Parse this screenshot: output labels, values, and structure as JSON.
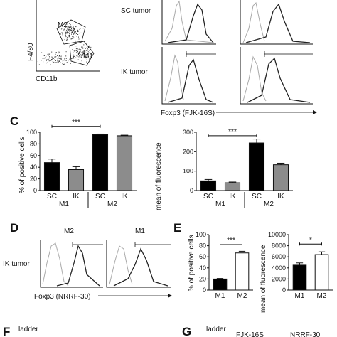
{
  "panel_top": {
    "dot_plot": {
      "ylabel": "F4/80",
      "xlabel": "CD11b",
      "gate1": "M2",
      "gate2": "M1"
    },
    "row1_label": "SC tumor",
    "row2_label": "IK tumor",
    "hist_xlabel": "Foxp3 (FJK-16S)"
  },
  "panel_c": {
    "letter": "C",
    "left_ylabel": "% of positive cells",
    "right_ylabel": "mean of fluorescence",
    "sig": "***"
  },
  "panel_d": {
    "letter": "D",
    "row_label": "IK tumor",
    "col1": "M2",
    "col2": "M1",
    "xlabel": "Foxp3 (NRRF-30)"
  },
  "panel_e": {
    "letter": "E",
    "left_ylabel": "% of positive cells",
    "right_ylabel": "mean of fluorescence",
    "sig_left": "***",
    "sig_right": "*"
  },
  "panel_f": {
    "letter": "F",
    "ladder": "ladder"
  },
  "panel_g": {
    "letter": "G",
    "ladder": "ladder",
    "col1": "FJK-16S",
    "col2": "NRRF-30"
  },
  "chart_data": [
    {
      "type": "bar",
      "panel": "C-left",
      "categories": [
        "SC",
        "IK",
        "SC",
        "IK"
      ],
      "groups": [
        "M1",
        "M2"
      ],
      "values": [
        48,
        36,
        96,
        94
      ],
      "errors": [
        6,
        5,
        1,
        1
      ],
      "colors": [
        "#000000",
        "#8c8c8c",
        "#000000",
        "#8c8c8c"
      ],
      "ylabel": "% of positive cells",
      "ylim": [
        0,
        100
      ],
      "yticks": [
        0,
        20,
        40,
        60,
        80,
        100
      ],
      "sig": "***"
    },
    {
      "type": "bar",
      "panel": "C-right",
      "categories": [
        "SC",
        "IK",
        "SC",
        "IK"
      ],
      "groups": [
        "M1",
        "M2"
      ],
      "values": [
        50,
        40,
        245,
        133
      ],
      "errors": [
        7,
        4,
        20,
        8
      ],
      "colors": [
        "#000000",
        "#8c8c8c",
        "#000000",
        "#8c8c8c"
      ],
      "ylabel": "mean of fluorescence",
      "ylim": [
        0,
        300
      ],
      "yticks": [
        0,
        100,
        200,
        300
      ],
      "sig": "***"
    },
    {
      "type": "bar",
      "panel": "E-left",
      "categories": [
        "M1",
        "M2"
      ],
      "values": [
        20,
        67
      ],
      "errors": [
        1,
        3
      ],
      "colors": [
        "#000000",
        "#ffffff"
      ],
      "ylabel": "% of positive cells",
      "ylim": [
        0,
        100
      ],
      "yticks": [
        0,
        20,
        40,
        60,
        80,
        100
      ],
      "sig": "***"
    },
    {
      "type": "bar",
      "panel": "E-right",
      "categories": [
        "M1",
        "M2"
      ],
      "values": [
        4500,
        6400
      ],
      "errors": [
        400,
        500
      ],
      "colors": [
        "#000000",
        "#ffffff"
      ],
      "ylabel": "mean of fluorescence",
      "ylim": [
        0,
        10000
      ],
      "yticks": [
        0,
        2000,
        4000,
        6000,
        8000,
        10000
      ],
      "sig": "*"
    }
  ]
}
